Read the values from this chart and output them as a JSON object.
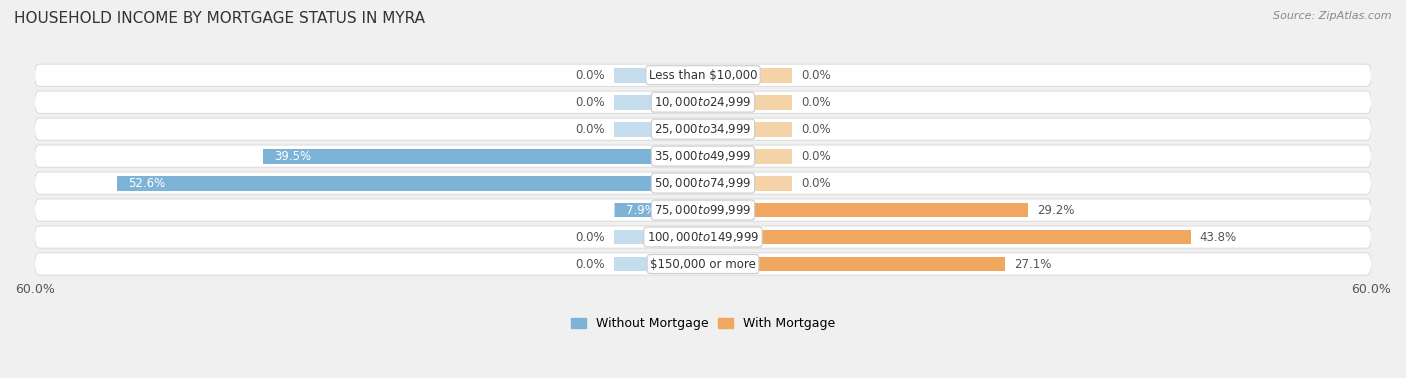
{
  "title": "HOUSEHOLD INCOME BY MORTGAGE STATUS IN MYRA",
  "source": "Source: ZipAtlas.com",
  "categories": [
    "Less than $10,000",
    "$10,000 to $24,999",
    "$25,000 to $34,999",
    "$35,000 to $49,999",
    "$50,000 to $74,999",
    "$75,000 to $99,999",
    "$100,000 to $149,999",
    "$150,000 or more"
  ],
  "without_mortgage": [
    0.0,
    0.0,
    0.0,
    39.5,
    52.6,
    7.9,
    0.0,
    0.0
  ],
  "with_mortgage": [
    0.0,
    0.0,
    0.0,
    0.0,
    0.0,
    29.2,
    43.8,
    27.1
  ],
  "color_without": "#7EB3D8",
  "color_with": "#F0A860",
  "color_without_faint": "#C5DCED",
  "color_with_faint": "#F5D3A8",
  "axis_limit": 60.0,
  "background_color": "#f0f0f0",
  "row_bg_color": "#f7f7f7",
  "title_fontsize": 11,
  "label_fontsize": 8.5,
  "tick_fontsize": 9,
  "legend_fontsize": 9,
  "source_fontsize": 8,
  "value_label_fontsize": 8.5
}
